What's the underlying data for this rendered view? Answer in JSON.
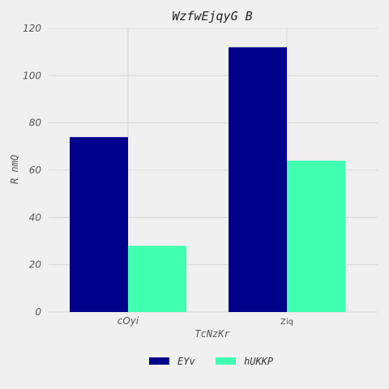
{
  "chart_data": {
    "type": "bar",
    "title": "WzfwEjqyG B",
    "xlabel": "TcNzKr",
    "ylabel": "R nmQ",
    "categories": [
      "cOyi",
      "Ziq"
    ],
    "series": [
      {
        "name": "EYv",
        "values": [
          74,
          112
        ],
        "color": "#00008b"
      },
      {
        "name": "hUKKP",
        "values": [
          28,
          64
        ],
        "color": "#40ffb0"
      }
    ],
    "ylim": [
      0,
      120
    ],
    "yticks": [
      0,
      20,
      40,
      60,
      80,
      100,
      120
    ],
    "grid": true,
    "legend_position": "bottom"
  }
}
